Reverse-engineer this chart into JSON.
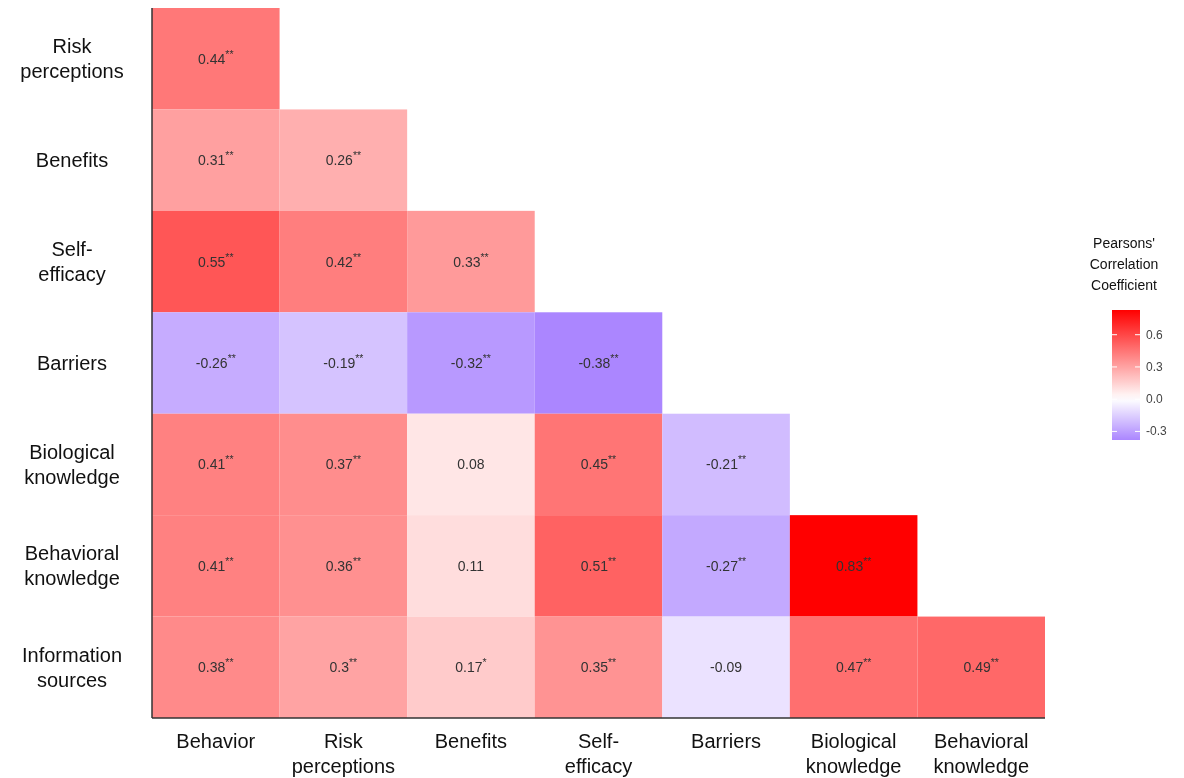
{
  "chart_data": {
    "type": "heatmap",
    "clabel": "Pearsons' Correlation Coefficient",
    "categories": [
      "Behavior",
      "Risk perceptions",
      "Benefits",
      "Self-efficacy",
      "Barriers",
      "Biological knowledge",
      "Behavioral knowledge"
    ],
    "y_categories": [
      "Risk perceptions",
      "Benefits",
      "Self-efficacy",
      "Barriers",
      "Biological knowledge",
      "Behavioral knowledge",
      "Information sources"
    ],
    "cells": [
      [
        0.44,
        null,
        null,
        null,
        null,
        null,
        null
      ],
      [
        0.31,
        0.26,
        null,
        null,
        null,
        null,
        null
      ],
      [
        0.55,
        0.42,
        0.33,
        null,
        null,
        null,
        null
      ],
      [
        -0.26,
        -0.19,
        -0.32,
        -0.38,
        null,
        null,
        null
      ],
      [
        0.41,
        0.37,
        0.08,
        0.45,
        -0.21,
        null,
        null
      ],
      [
        0.41,
        0.36,
        0.11,
        0.51,
        -0.27,
        0.83,
        null
      ],
      [
        0.38,
        0.3,
        0.17,
        0.35,
        -0.09,
        0.47,
        0.49
      ]
    ],
    "cell_labels": [
      [
        "0.44$^{**}$",
        null,
        null,
        null,
        null,
        null,
        null
      ],
      [
        "0.31$^{**}$",
        "0.26$^{**}$",
        null,
        null,
        null,
        null,
        null
      ],
      [
        "0.55$^{**}$",
        "0.42$^{**}$",
        "0.33$^{**}$",
        null,
        null,
        null,
        null
      ],
      [
        "-0.26$^{**}$",
        "-0.19$^{**}$",
        "-0.32$^{**}$",
        "-0.38$^{**}$",
        null,
        null,
        null
      ],
      [
        "0.41$^{**}$",
        "0.37$^{**}$",
        "0.08",
        "0.45$^{**}$",
        "-0.21$^{**}$",
        null,
        null
      ],
      [
        "0.41$^{**}$",
        "0.36$^{**}$",
        "0.11",
        "0.51$^{**}$",
        "-0.27$^{**}$",
        "0.83$^{**}$",
        null
      ],
      [
        "0.38$^{**}$",
        "0.3$^{**}$",
        "0.17$^{*}$",
        "0.35$^{**}$",
        "-0.09",
        "0.47$^{**}$",
        "0.49$^{**}$"
      ]
    ],
    "clim": [
      -0.38,
      0.83
    ],
    "cticks": [
      {
        "value": 0.6,
        "label": "0.6"
      },
      {
        "value": 0.3,
        "label": "0.3"
      },
      {
        "value": 0,
        "label": "0.0"
      },
      {
        "value": -0.3,
        "label": "-0.3"
      }
    ]
  }
}
